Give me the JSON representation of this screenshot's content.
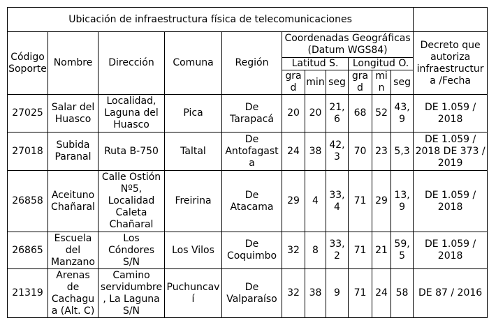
{
  "title": "Ubicación de infraestructura física de telecomunicaciones",
  "headers": {
    "codigo": "Código Soporte",
    "nombre": "Nombre",
    "direccion": "Dirección",
    "comuna": "Comuna",
    "region": "Región",
    "coordenadas": "Coordenadas Geográficas (Datum WGS84)",
    "latitud": "Latitud S.",
    "longitud": "Longitud O.",
    "decreto": "Decreto que autoriza infraestructura /Fecha",
    "sub": [
      "grad",
      "min",
      "seg",
      "grad",
      "min",
      "seg"
    ]
  },
  "rows": [
    [
      "27025",
      "Salar del Huasco",
      "Localidad, Laguna del Huasco",
      "Pica",
      "De Tarapacá",
      "20",
      "20",
      "21,6",
      "68",
      "52",
      "43,9",
      "DE 1.059 / 2018"
    ],
    [
      "27018",
      "Subida Paranal",
      "Ruta B-750",
      "Taltal",
      "De Antofagasta",
      "24",
      "38",
      "42,3",
      "70",
      "23",
      "5,3",
      "DE 1.059 / 2018 DE 373 / 2019"
    ],
    [
      "26858",
      "Aceituno Chañaral",
      "Calle Ostión Nº5, Localidad Caleta Chañaral",
      "Freirina",
      "De Atacama",
      "29",
      "4",
      "33,4",
      "71",
      "29",
      "13,9",
      "DE 1.059 / 2018"
    ],
    [
      "26865",
      "Escuela del Manzano",
      "Los Cóndores S/N",
      "Los Vilos",
      "De Coquimbo",
      "32",
      "8",
      "33,2",
      "71",
      "21",
      "59,5",
      "DE 1.059 / 2018"
    ],
    [
      "21319",
      "Arenas de Cachagua (Alt. C)",
      "Camino servidumbre, La Laguna S/N",
      "Puchuncaví",
      "De Valparaíso",
      "32",
      "38",
      "9",
      "71",
      "24",
      "58",
      "DE 87 / 2016"
    ]
  ]
}
